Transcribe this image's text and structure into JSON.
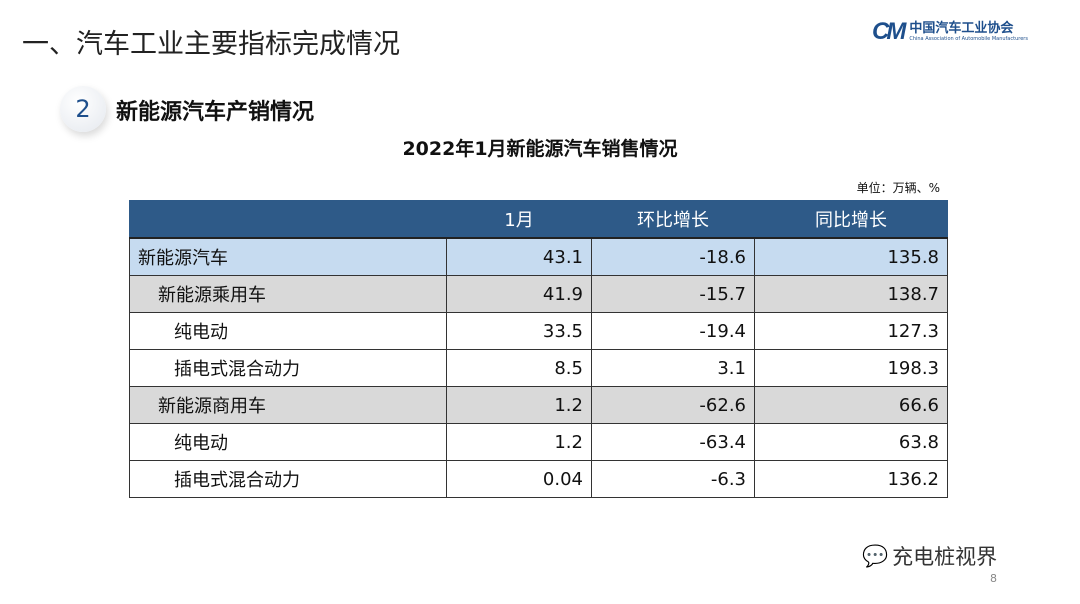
{
  "header": {
    "title": "一、汽车工业主要指标完成情况",
    "logo_cn": "中国汽车工业协会",
    "logo_en": "China Association of Automobile Manufacturers",
    "logo_mark": "CAAM"
  },
  "section": {
    "number": "2",
    "title": "新能源汽车产销情况"
  },
  "table": {
    "title": "2022年1月新能源汽车销售情况",
    "unit": "单位：万辆、%",
    "columns": [
      "",
      "1月",
      "环比增长",
      "同比增长"
    ],
    "rows": [
      {
        "name": "新能源汽车",
        "jan": "43.1",
        "mom": "-18.6",
        "yoy": "135.8",
        "level": 0
      },
      {
        "name": "新能源乘用车",
        "jan": "41.9",
        "mom": "-15.7",
        "yoy": "138.7",
        "level": 1
      },
      {
        "name": "纯电动",
        "jan": "33.5",
        "mom": "-19.4",
        "yoy": "127.3",
        "level": 2
      },
      {
        "name": "插电式混合动力",
        "jan": "8.5",
        "mom": "3.1",
        "yoy": "198.3",
        "level": 2
      },
      {
        "name": "新能源商用车",
        "jan": "1.2",
        "mom": "-62.6",
        "yoy": "66.6",
        "level": 1
      },
      {
        "name": "纯电动",
        "jan": "1.2",
        "mom": "-63.4",
        "yoy": "63.8",
        "level": 2
      },
      {
        "name": "插电式混合动力",
        "jan": "0.04",
        "mom": "-6.3",
        "yoy": "136.2",
        "level": 2
      }
    ]
  },
  "footer": {
    "watermark": "充电桩视界",
    "page": "8"
  },
  "colors": {
    "header": "#2e5a88",
    "row_total": "#c6dbf0",
    "row_sub": "#d9d9d9",
    "brand": "#1e4f8c"
  }
}
